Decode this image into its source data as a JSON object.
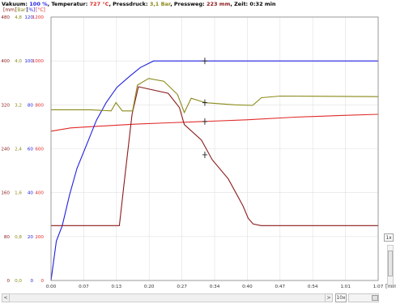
{
  "status": {
    "vac_label": "Vakuum: ",
    "vac_value": "100 %",
    "sep1": ", ",
    "temp_label": "Temperatur: ",
    "temp_value": "727 °C",
    "sep2": ", ",
    "press_label": "Pressdruck: ",
    "press_value": "3,1 Bar",
    "sep3": ", ",
    "weg_label": "Pressweg: ",
    "weg_value": "223 mm",
    "sep4": ", ",
    "zeit_label": "Zeit: ",
    "zeit_value": "0:32 min"
  },
  "units": {
    "mm": "[mm]",
    "bar": "[Bar]",
    "pct": "[%]",
    "degc": "[°C]"
  },
  "colors": {
    "vakuum": "#1f1fe0",
    "temperatur": "#e02a2a",
    "pressdruck": "#8a8a1a",
    "pressweg": "#8b1a1a",
    "grid": "#e0e0e0"
  },
  "chart_data": {
    "type": "line",
    "xlabel": "[min]",
    "x_ticks": [
      "0:00",
      "0:07",
      "0:13",
      "0:20",
      "0:27",
      "0:34",
      "0:40",
      "0:47",
      "0:54",
      "1:01",
      "1:07"
    ],
    "xlim": [
      0,
      67
    ],
    "y_axes": [
      {
        "unit": "[mm]",
        "color": "#8b1a1a",
        "ticks": [
          "0",
          "80",
          "160",
          "240",
          "320",
          "400",
          "480"
        ]
      },
      {
        "unit": "[Bar]",
        "color": "#8a8a1a",
        "ticks": [
          "0,0",
          "0,8",
          "1,6",
          "2,4",
          "3,2",
          "4,0",
          "4,8"
        ]
      },
      {
        "unit": "[%]",
        "color": "#1f1fe0",
        "ticks": [
          "0",
          "20",
          "40",
          "60",
          "80",
          "100",
          "120"
        ]
      },
      {
        "unit": "[°C]",
        "color": "#e02a2a",
        "ticks": [
          "0",
          "200",
          "400",
          "600",
          "800",
          "1000",
          "1200"
        ]
      }
    ],
    "ylim_degc": [
      0,
      1200
    ],
    "series": [
      {
        "name": "Vakuum",
        "unit": "%",
        "color": "#1f1fe0",
        "points": [
          [
            0,
            0
          ],
          [
            1.1,
            18
          ],
          [
            2.3,
            25
          ],
          [
            3.8,
            39
          ],
          [
            5.3,
            51
          ],
          [
            7.5,
            63
          ],
          [
            9.3,
            73
          ],
          [
            11.3,
            81
          ],
          [
            13.5,
            88
          ],
          [
            16.1,
            93
          ],
          [
            18.3,
            97
          ],
          [
            21,
            100
          ],
          [
            34,
            100
          ],
          [
            67,
            100
          ]
        ]
      },
      {
        "name": "Temperatur",
        "unit": "°C",
        "color": "#e02a2a",
        "points": [
          [
            0,
            680
          ],
          [
            4,
            695
          ],
          [
            10,
            703
          ],
          [
            17,
            712
          ],
          [
            24,
            718
          ],
          [
            31,
            724
          ],
          [
            40,
            732
          ],
          [
            50,
            744
          ],
          [
            60,
            752
          ],
          [
            67,
            757
          ]
        ]
      },
      {
        "name": "Pressdruck",
        "unit": "Bar",
        "color": "#8a8a1a",
        "points": [
          [
            0,
            3.11
          ],
          [
            8,
            3.11
          ],
          [
            12.3,
            3.09
          ],
          [
            13.3,
            3.24
          ],
          [
            14.6,
            3.09
          ],
          [
            16.7,
            3.09
          ],
          [
            17.7,
            3.56
          ],
          [
            20,
            3.68
          ],
          [
            23.1,
            3.63
          ],
          [
            25.9,
            3.39
          ],
          [
            27.3,
            3.06
          ],
          [
            28.7,
            3.32
          ],
          [
            31.6,
            3.24
          ],
          [
            37.6,
            3.2
          ],
          [
            41.3,
            3.19
          ],
          [
            43.1,
            3.33
          ],
          [
            47,
            3.36
          ],
          [
            67,
            3.35
          ]
        ]
      },
      {
        "name": "Pressweg",
        "unit": "mm",
        "color": "#8b1a1a",
        "points": [
          [
            0,
            100
          ],
          [
            14,
            100
          ],
          [
            15.1,
            188
          ],
          [
            16.6,
            303
          ],
          [
            17.9,
            353
          ],
          [
            24,
            341
          ],
          [
            26.3,
            315
          ],
          [
            27.3,
            284
          ],
          [
            30.8,
            256
          ],
          [
            33,
            220
          ],
          [
            36.3,
            185
          ],
          [
            39.3,
            136
          ],
          [
            40.4,
            113
          ],
          [
            41.4,
            103
          ],
          [
            43,
            100
          ],
          [
            67,
            100
          ]
        ]
      }
    ],
    "markers": [
      {
        "series": "Vakuum",
        "x": 31.5,
        "y": 100
      },
      {
        "series": "Pressdruck",
        "x": 31.5,
        "y": 3.24
      },
      {
        "series": "Temperatur",
        "x": 31.5,
        "y": 724
      },
      {
        "series": "Pressweg",
        "x": 31.5,
        "y": 229
      }
    ]
  },
  "controls": {
    "zoom_value": "10x",
    "zoom_side_label": "1x",
    "scroll_left": "<",
    "scroll_right": ">"
  }
}
